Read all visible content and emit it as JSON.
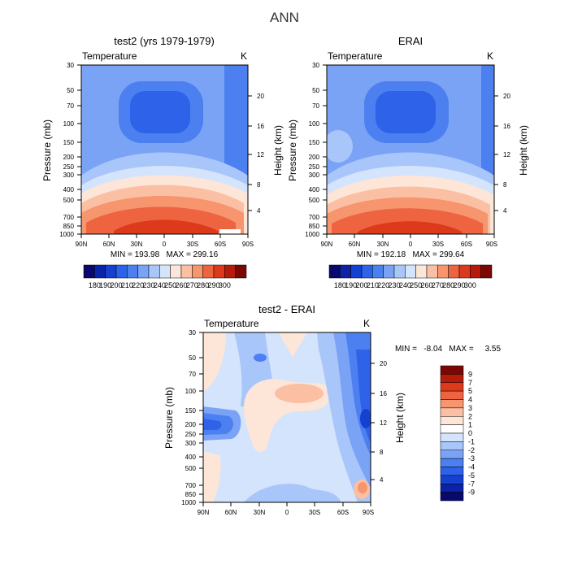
{
  "title": "ANN",
  "chart_data": [
    {
      "type": "heatmap",
      "title": "test2 (yrs 1979-1979)",
      "variable": "Temperature",
      "units": "K",
      "xlabel": "",
      "ylabel": "Pressure (mb)",
      "ylabel_right": "Height (km)",
      "x_ticks": [
        "90N",
        "60N",
        "30N",
        "0",
        "30S",
        "60S",
        "90S"
      ],
      "y_ticks": [
        "30",
        "50",
        "70",
        "100",
        "150",
        "200",
        "250",
        "300",
        "400",
        "500",
        "700",
        "850",
        "1000"
      ],
      "y_right_ticks": [
        "20",
        "16",
        "12",
        "8",
        "4"
      ],
      "ylim": [
        1000,
        30
      ],
      "stats": "MIN = 193.98   MAX = 299.16",
      "min": 193.98,
      "max": 299.16,
      "colorbar_labels": [
        "180",
        "190",
        "200",
        "210",
        "220",
        "230",
        "240",
        "250",
        "260",
        "270",
        "280",
        "290",
        "300"
      ]
    },
    {
      "type": "heatmap",
      "title": "ERAI",
      "variable": "Temperature",
      "units": "K",
      "xlabel": "",
      "ylabel": "Pressure (mb)",
      "ylabel_right": "Height (km)",
      "x_ticks": [
        "90N",
        "60N",
        "30N",
        "0",
        "30S",
        "60S",
        "90S"
      ],
      "y_ticks": [
        "30",
        "50",
        "70",
        "100",
        "150",
        "200",
        "250",
        "300",
        "400",
        "500",
        "700",
        "850",
        "1000"
      ],
      "y_right_ticks": [
        "20",
        "16",
        "12",
        "8",
        "4"
      ],
      "ylim": [
        1000,
        30
      ],
      "stats": "MIN = 192.18   MAX = 299.64",
      "min": 192.18,
      "max": 299.64,
      "colorbar_labels": [
        "180",
        "190",
        "200",
        "210",
        "220",
        "230",
        "240",
        "250",
        "260",
        "270",
        "280",
        "290",
        "300"
      ]
    },
    {
      "type": "heatmap",
      "title": "test2 - ERAI",
      "variable": "Temperature",
      "units": "K",
      "xlabel": "",
      "ylabel": "Pressure (mb)",
      "ylabel_right": "Height (km)",
      "x_ticks": [
        "90N",
        "60N",
        "30N",
        "0",
        "30S",
        "60S",
        "90S"
      ],
      "y_ticks": [
        "30",
        "50",
        "70",
        "100",
        "150",
        "200",
        "250",
        "300",
        "400",
        "500",
        "700",
        "850",
        "1000"
      ],
      "y_right_ticks": [
        "20",
        "16",
        "12",
        "8",
        "4"
      ],
      "ylim": [
        1000,
        30
      ],
      "stats": "MIN =   -8.04   MAX =     3.55",
      "min": -8.04,
      "max": 3.55,
      "colorbar_labels": [
        "9",
        "7",
        "5",
        "4",
        "3",
        "2",
        "1",
        "0",
        "-1",
        "-2",
        "-3",
        "-4",
        "-5",
        "-7",
        "-9"
      ]
    }
  ],
  "colors": {
    "abs_scale": [
      "#08086e",
      "#0b23a8",
      "#1641d0",
      "#2e62e8",
      "#4c80f0",
      "#7aa3f5",
      "#a8c6fa",
      "#d3e4fc",
      "#fde6d8",
      "#fbc0a4",
      "#f6956e",
      "#ee6440",
      "#dc3a1a",
      "#b51a0a",
      "#7a0606"
    ],
    "diff_scale": [
      "#7a0606",
      "#b51a0a",
      "#dc3a1a",
      "#ee6440",
      "#f6956e",
      "#fbc0a4",
      "#fde6d8",
      "#ffffff",
      "#d3e4fc",
      "#a8c6fa",
      "#7aa3f5",
      "#4c80f0",
      "#2e62e8",
      "#1641d0",
      "#0b23a8",
      "#08086e"
    ]
  }
}
